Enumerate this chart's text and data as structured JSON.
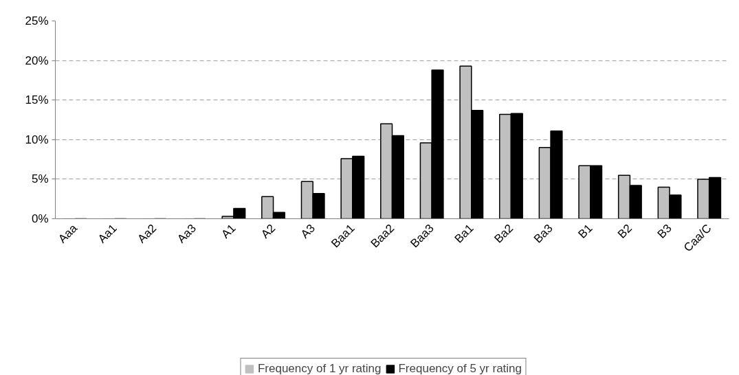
{
  "chart_data": {
    "type": "bar",
    "categories": [
      "Aaa",
      "Aa1",
      "Aa2",
      "Aa3",
      "A1",
      "A2",
      "A3",
      "Baa1",
      "Baa2",
      "Baa3",
      "Ba1",
      "Ba2",
      "Ba3",
      "B1",
      "B2",
      "B3",
      "Caa/C"
    ],
    "series": [
      {
        "name": "Frequency of 1 yr rating",
        "color": "#c0c0c0",
        "values": [
          0,
          0,
          0,
          0,
          0.3,
          2.8,
          4.7,
          7.6,
          12.0,
          9.6,
          19.3,
          13.2,
          9.0,
          6.7,
          5.5,
          4.0,
          5.0
        ]
      },
      {
        "name": "Frequency of 5 yr rating",
        "color": "#000000",
        "values": [
          0,
          0,
          0,
          0,
          1.3,
          0.8,
          3.2,
          7.9,
          10.5,
          18.8,
          13.7,
          13.3,
          11.1,
          6.7,
          4.2,
          3.0,
          5.2
        ]
      }
    ],
    "ylim": [
      0,
      25
    ],
    "yticks": [
      {
        "value": 0,
        "label": "0%"
      },
      {
        "value": 5,
        "label": "5%"
      },
      {
        "value": 10,
        "label": "10%"
      },
      {
        "value": 15,
        "label": "15%"
      },
      {
        "value": 20,
        "label": "20%"
      },
      {
        "value": 25,
        "label": "25%"
      }
    ],
    "grid": "y",
    "legend": "bottom"
  }
}
